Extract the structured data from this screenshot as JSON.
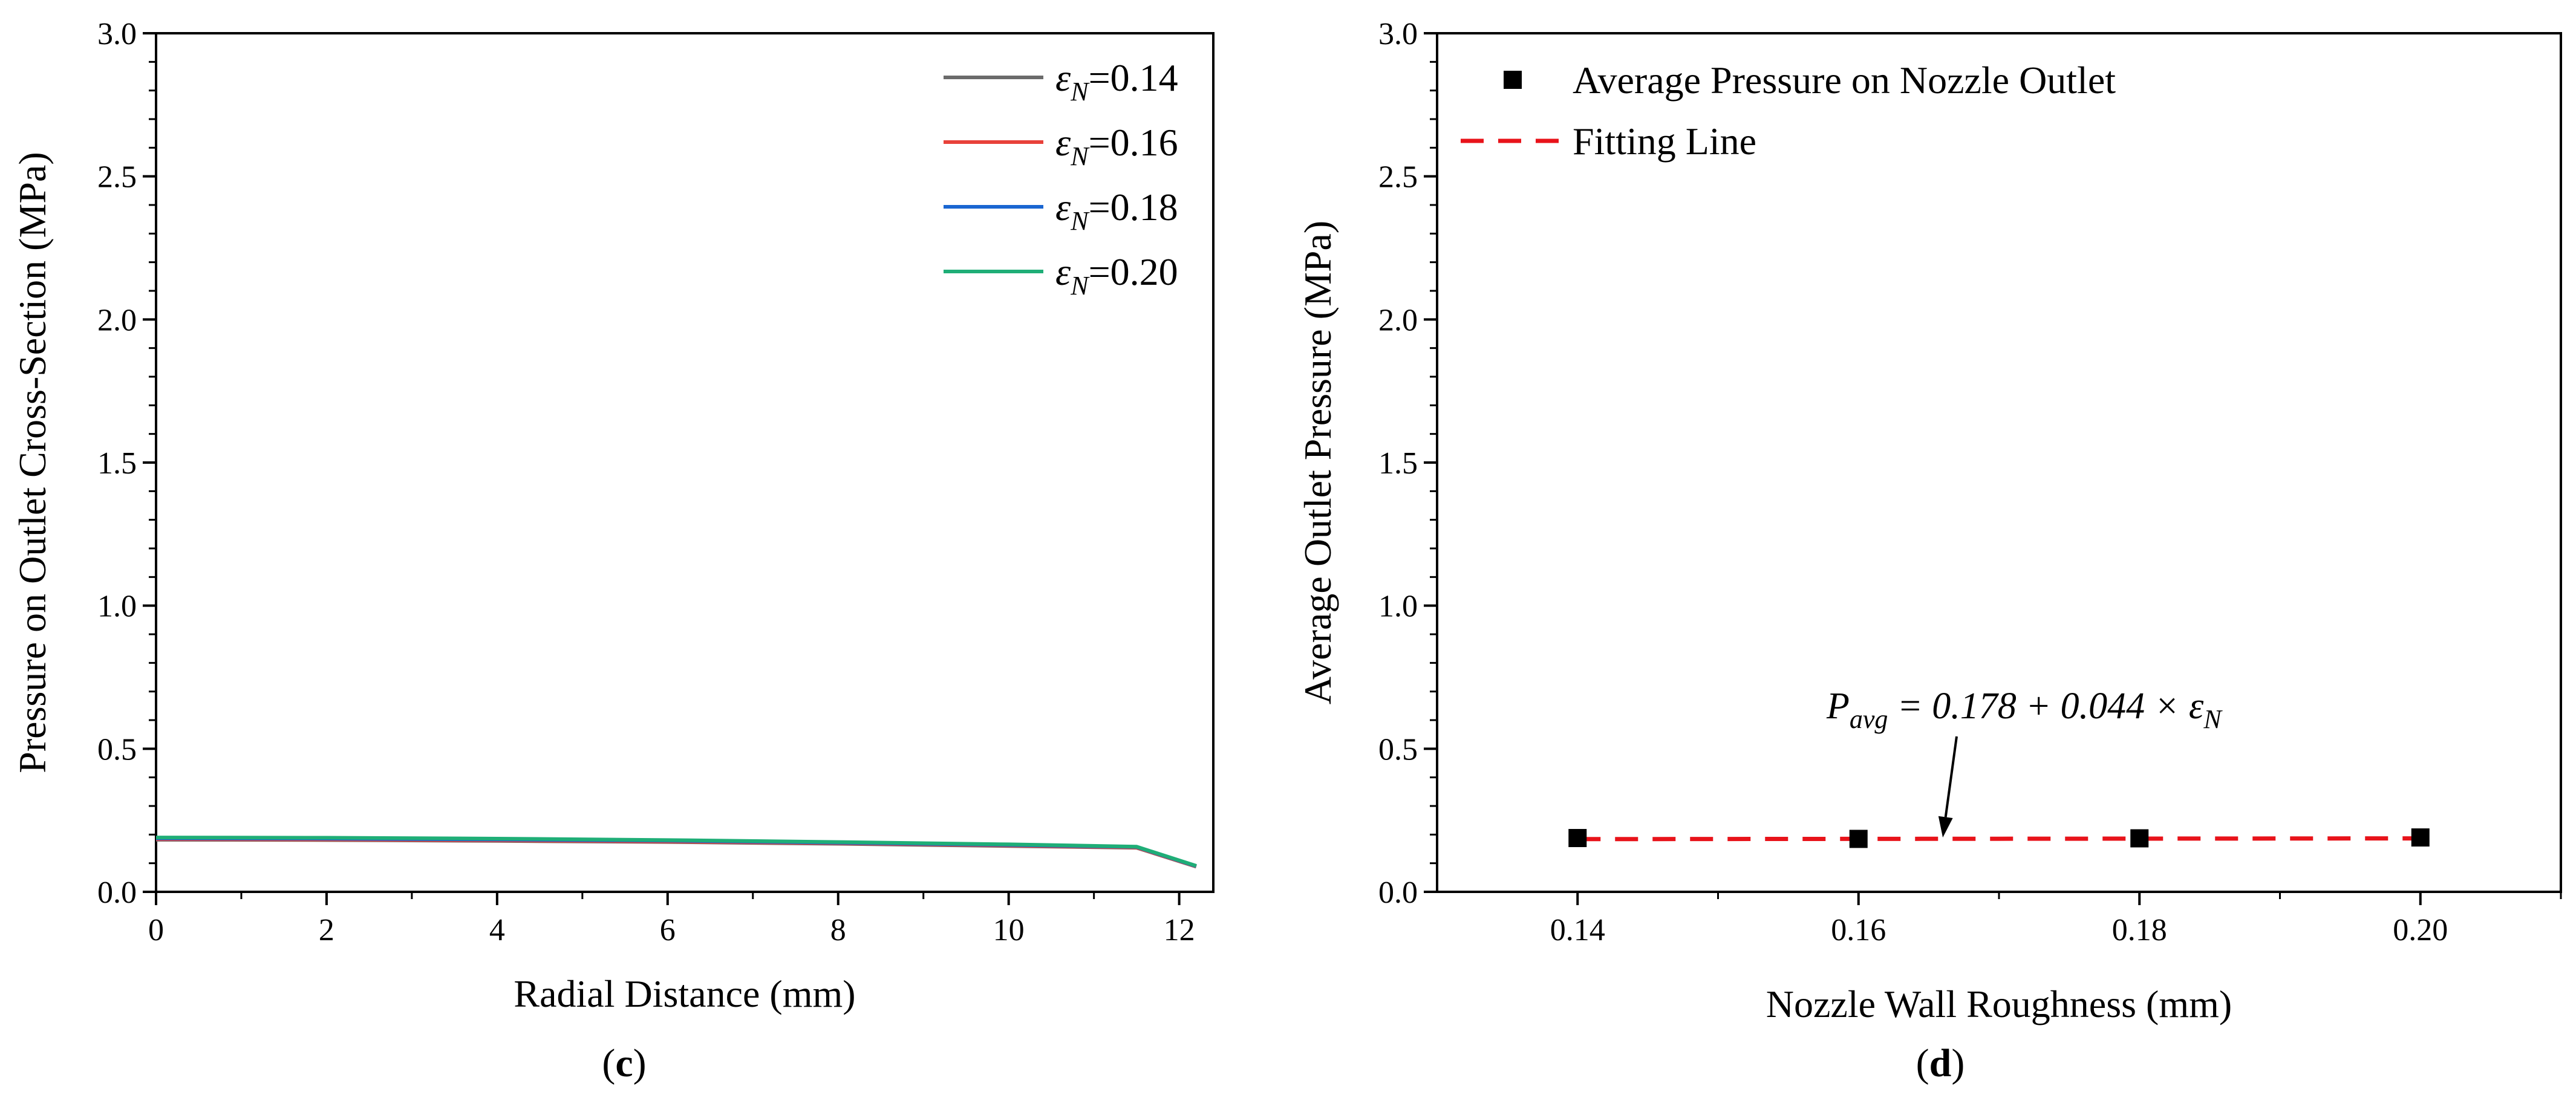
{
  "chart_data": [
    {
      "panel": "c",
      "type": "line",
      "panel_label": "(c)",
      "panel_label_letter": "c",
      "xlabel": "Radial Distance (mm)",
      "ylabel": "Pressure on Outlet Cross-Section (MPa)",
      "xlim": [
        0,
        12.4
      ],
      "ylim": [
        0,
        3.0
      ],
      "xticks": [
        0,
        2,
        4,
        6,
        8,
        10,
        12
      ],
      "yticks": [
        "0.0",
        "0.5",
        "1.0",
        "1.5",
        "2.0",
        "2.5",
        "3.0"
      ],
      "legend_position": "top-right",
      "grid": false,
      "x": [
        0,
        2,
        4,
        6,
        8,
        10,
        11.5,
        12.2
      ],
      "series": [
        {
          "name": "εN=0.14",
          "legend_prefix": "ε",
          "legend_sub": "N",
          "legend_value": "=0.14",
          "color": "#6b6b6b",
          "values": [
            0.182,
            0.181,
            0.178,
            0.174,
            0.168,
            0.16,
            0.154,
            0.088
          ]
        },
        {
          "name": "εN=0.16",
          "legend_prefix": "ε",
          "legend_sub": "N",
          "legend_value": "=0.16",
          "color": "#e8413a",
          "values": [
            0.184,
            0.183,
            0.18,
            0.176,
            0.17,
            0.162,
            0.155,
            0.089
          ]
        },
        {
          "name": "εN=0.18",
          "legend_prefix": "ε",
          "legend_sub": "N",
          "legend_value": "=0.18",
          "color": "#1a66d1",
          "values": [
            0.187,
            0.186,
            0.183,
            0.179,
            0.172,
            0.164,
            0.157,
            0.09
          ]
        },
        {
          "name": "εN=0.20",
          "legend_prefix": "ε",
          "legend_sub": "N",
          "legend_value": "=0.20",
          "color": "#1fae77",
          "values": [
            0.19,
            0.189,
            0.186,
            0.181,
            0.174,
            0.166,
            0.158,
            0.091
          ]
        }
      ]
    },
    {
      "panel": "d",
      "type": "scatter",
      "panel_label": "(d)",
      "panel_label_letter": "d",
      "xlabel": "Nozzle Wall Roughness (mm)",
      "ylabel": "Average Outlet Pressure (MPa)",
      "xlim": [
        0.13,
        0.21
      ],
      "ylim": [
        0,
        3.0
      ],
      "xticks": [
        "0.14",
        "0.16",
        "0.18",
        "0.20"
      ],
      "yticks": [
        "0.0",
        "0.5",
        "1.0",
        "1.5",
        "2.0",
        "2.5",
        "3.0"
      ],
      "legend_position": "top-left",
      "grid": false,
      "series": [
        {
          "name": "Average Pressure on Nozzle Outlet",
          "marker": "square",
          "color": "#000000",
          "x": [
            0.14,
            0.16,
            0.18,
            0.2
          ],
          "values": [
            0.188,
            0.185,
            0.187,
            0.19
          ]
        },
        {
          "name": "Fitting Line",
          "style": "dashed",
          "color": "#e8131a",
          "x": [
            0.14,
            0.2
          ],
          "values": [
            0.1842,
            0.1868
          ]
        }
      ],
      "annotation": {
        "text": "P_avg = 0.178 + 0.044 × ε_N",
        "p_main": "P",
        "p_sub": "avg",
        "formula_text": " = 0.178 + 0.044 × ε",
        "eps_sub": "N",
        "arrow_to": [
          0.166,
          0.19
        ]
      }
    }
  ]
}
